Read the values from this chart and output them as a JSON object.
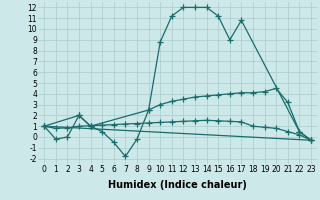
{
  "background_color": "#cde8e8",
  "grid_color": "#aacccc",
  "line_color": "#1a6b6b",
  "xlabel": "Humidex (Indice chaleur)",
  "xlim": [
    -0.5,
    23.5
  ],
  "ylim": [
    -2.5,
    12.5
  ],
  "xticks": [
    0,
    1,
    2,
    3,
    4,
    5,
    6,
    7,
    8,
    9,
    10,
    11,
    12,
    13,
    14,
    15,
    16,
    17,
    18,
    19,
    20,
    21,
    22,
    23
  ],
  "yticks": [
    -2,
    -1,
    0,
    1,
    2,
    3,
    4,
    5,
    6,
    7,
    8,
    9,
    10,
    11,
    12
  ],
  "tick_fontsize": 5.5,
  "label_fontsize": 7,
  "line1_x": [
    0,
    1,
    2,
    3,
    4,
    5,
    6,
    7,
    8,
    9,
    10,
    11,
    12,
    13,
    14,
    15,
    16,
    17,
    22,
    23
  ],
  "line1_y": [
    1,
    -0.2,
    0,
    2,
    1,
    0.5,
    -0.5,
    -1.8,
    -0.2,
    2.5,
    8.8,
    11.2,
    12,
    12,
    12,
    11.2,
    9.0,
    10.8,
    0.5,
    -0.3
  ],
  "line2_x": [
    0,
    1,
    2,
    3,
    4,
    5,
    6,
    7,
    8,
    9,
    10,
    11,
    12,
    13,
    14,
    15,
    16,
    17,
    18,
    19,
    20,
    21,
    22,
    23
  ],
  "line2_y": [
    1,
    0.8,
    0.85,
    1.0,
    1.05,
    1.1,
    1.15,
    1.2,
    1.25,
    1.3,
    1.35,
    1.4,
    1.45,
    1.5,
    1.55,
    1.5,
    1.45,
    1.4,
    1.0,
    0.9,
    0.8,
    0.5,
    0.2,
    -0.3
  ],
  "line3_x": [
    0,
    23
  ],
  "line3_y": [
    1,
    -0.3
  ],
  "line4_x": [
    0,
    3,
    4,
    9,
    10,
    11,
    12,
    13,
    14,
    15,
    16,
    17,
    18,
    19,
    20,
    21,
    22,
    23
  ],
  "line4_y": [
    1,
    2,
    1.0,
    2.5,
    3.0,
    3.3,
    3.5,
    3.7,
    3.8,
    3.9,
    4.0,
    4.1,
    4.1,
    4.2,
    4.5,
    3.2,
    0.5,
    -0.3
  ]
}
